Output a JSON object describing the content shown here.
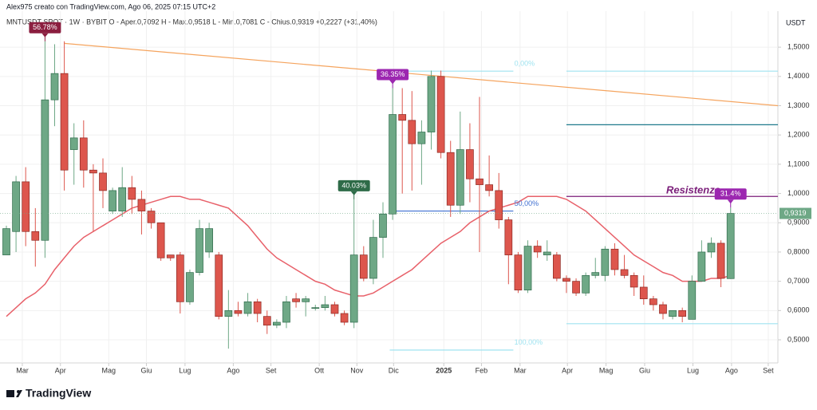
{
  "chart_data": {
    "type": "candlestick",
    "header": "Alex975 creato con TradingView.com, Ago 06, 2025 07:15 UTC+2",
    "legend": "MNTUSDT SPOT · 1W · BYBIT  O - Aper.0,7092  H - Max.0,9518  L - Min.0,7081  C - Chius.0,9319  +0,2227 (+31,40%)",
    "y_unit": "USDT",
    "brand": "TradingView",
    "up_color": "#6ea886",
    "down_color": "#dd564d",
    "open": [
      0.79,
      0.87,
      1.04,
      0.87,
      0.84,
      1.32,
      1.41,
      1.15,
      1.19,
      1.08,
      1.07,
      0.94,
      0.94,
      1.02,
      0.98,
      0.94,
      0.9,
      0.79,
      0.79,
      0.63,
      0.73,
      0.8,
      0.79,
      0.58,
      0.6,
      0.59,
      0.63,
      0.58,
      0.55,
      0.56,
      0.64,
      0.63,
      0.61,
      0.61,
      0.62,
      0.59,
      0.56,
      0.79,
      0.71,
      0.85,
      0.93,
      1.27,
      1.25,
      1.17,
      1.21,
      1.4,
      1.14,
      0.96,
      1.15,
      1.05,
      1.03,
      1.01,
      0.91,
      0.79,
      0.67,
      0.82,
      0.79,
      0.79,
      0.71,
      0.7,
      0.66,
      0.72,
      0.72,
      0.81,
      0.74,
      0.72,
      0.68,
      0.64,
      0.62,
      0.58,
      0.6,
      0.57,
      0.7,
      0.8,
      0.83,
      0.7092
    ],
    "high": [
      0.89,
      1.06,
      1.09,
      0.95,
      1.52,
      1.51,
      1.52,
      1.24,
      1.25,
      1.1,
      1.12,
      1.02,
      1.09,
      1.06,
      1.01,
      0.95,
      0.9,
      0.79,
      0.8,
      0.74,
      0.91,
      0.9,
      0.8,
      0.67,
      0.63,
      0.66,
      0.64,
      0.6,
      0.57,
      0.65,
      0.66,
      0.65,
      0.62,
      0.65,
      0.63,
      0.6,
      0.98,
      0.82,
      0.91,
      0.97,
      1.36,
      1.36,
      1.35,
      1.25,
      1.42,
      1.42,
      1.18,
      1.28,
      1.24,
      1.33,
      1.13,
      1.07,
      0.92,
      0.8,
      0.84,
      0.84,
      0.84,
      0.8,
      0.72,
      0.71,
      0.73,
      0.78,
      0.82,
      0.83,
      0.79,
      0.73,
      0.72,
      0.65,
      0.63,
      0.6,
      0.61,
      0.72,
      0.84,
      0.85,
      0.84,
      0.9518
    ],
    "low": [
      0.79,
      0.8,
      0.82,
      0.75,
      0.78,
      1.23,
      1.01,
      1.03,
      1.02,
      0.87,
      0.95,
      0.93,
      0.92,
      0.93,
      0.86,
      0.88,
      0.77,
      0.77,
      0.59,
      0.62,
      0.72,
      0.78,
      0.57,
      0.47,
      0.58,
      0.58,
      0.56,
      0.52,
      0.54,
      0.54,
      0.61,
      0.58,
      0.6,
      0.6,
      0.58,
      0.55,
      0.54,
      0.7,
      0.69,
      0.78,
      0.91,
      1.0,
      1.01,
      1.03,
      1.15,
      1.12,
      0.92,
      0.93,
      0.97,
      0.8,
      0.99,
      0.88,
      0.69,
      0.66,
      0.66,
      0.78,
      0.77,
      0.7,
      0.66,
      0.65,
      0.65,
      0.71,
      0.7,
      0.72,
      0.71,
      0.65,
      0.62,
      0.6,
      0.57,
      0.57,
      0.56,
      0.57,
      0.7,
      0.78,
      0.68,
      0.7081
    ],
    "close": [
      0.88,
      1.04,
      0.87,
      0.84,
      1.32,
      1.41,
      1.08,
      1.19,
      1.08,
      1.07,
      1.01,
      1.01,
      1.02,
      0.98,
      0.94,
      0.9,
      0.78,
      0.78,
      0.63,
      0.73,
      0.88,
      0.88,
      0.58,
      0.6,
      0.59,
      0.63,
      0.59,
      0.55,
      0.56,
      0.63,
      0.63,
      0.64,
      0.61,
      0.62,
      0.59,
      0.56,
      0.79,
      0.71,
      0.85,
      0.93,
      1.27,
      1.25,
      1.17,
      1.21,
      1.4,
      1.14,
      0.96,
      1.15,
      1.05,
      1.03,
      1.01,
      0.91,
      0.79,
      0.67,
      0.82,
      0.8,
      0.8,
      0.71,
      0.7,
      0.66,
      0.72,
      0.73,
      0.81,
      0.74,
      0.72,
      0.68,
      0.64,
      0.62,
      0.59,
      0.6,
      0.58,
      0.7,
      0.8,
      0.83,
      0.71,
      0.9319
    ],
    "ma": {
      "color": "#e8616a",
      "values": [
        0.58,
        0.61,
        0.64,
        0.66,
        0.69,
        0.74,
        0.78,
        0.82,
        0.85,
        0.87,
        0.89,
        0.91,
        0.93,
        0.95,
        0.96,
        0.97,
        0.98,
        0.99,
        0.99,
        0.98,
        0.98,
        0.97,
        0.96,
        0.95,
        0.92,
        0.89,
        0.85,
        0.81,
        0.78,
        0.76,
        0.74,
        0.72,
        0.7,
        0.69,
        0.67,
        0.66,
        0.65,
        0.65,
        0.66,
        0.68,
        0.7,
        0.72,
        0.74,
        0.77,
        0.8,
        0.83,
        0.85,
        0.87,
        0.9,
        0.92,
        0.94,
        0.95,
        0.96,
        0.97,
        0.99,
        0.99,
        0.99,
        0.99,
        0.98,
        0.96,
        0.94,
        0.91,
        0.88,
        0.85,
        0.82,
        0.79,
        0.77,
        0.75,
        0.73,
        0.72,
        0.7,
        0.7,
        0.7,
        0.71,
        0.71,
        0.72
      ]
    },
    "trendline": {
      "from": 1.513,
      "to": 1.3,
      "color": "#f5a45e"
    },
    "levels": [
      {
        "value": 1.418,
        "label": "0,00%",
        "color": "#9fe3f0"
      },
      {
        "value": 0.94,
        "label": "50,00%",
        "color": "#3f6fd1"
      },
      {
        "value": 0.465,
        "label": "100,00%",
        "color": "#9fe3f0"
      },
      {
        "value": 1.235,
        "color": "#1f7a8c"
      },
      {
        "value": 0.555,
        "color": "#9fe3f0"
      },
      {
        "value": 0.99,
        "label": "Resistenza",
        "color": "#7b1e7a"
      }
    ],
    "callouts": [
      {
        "text": "56.78%",
        "color": "#8b1e3f"
      },
      {
        "text": "36.35%",
        "color": "#9c27b0"
      },
      {
        "text": "40.03%",
        "color": "#2e6b48"
      },
      {
        "text": "31.4%",
        "color": "#9c27b0"
      }
    ],
    "last_price": {
      "value": 0.9319,
      "label": "0,9319"
    },
    "xlim": [
      -0.66,
      79.9
    ],
    "xticks": [
      {
        "value": 1.65,
        "label": "Mar"
      },
      {
        "value": 5.6,
        "label": "Apr"
      },
      {
        "value": 10.6,
        "label": "Mag"
      },
      {
        "value": 14.5,
        "label": "Giu"
      },
      {
        "value": 18.5,
        "label": "Lug"
      },
      {
        "value": 23.5,
        "label": "Ago"
      },
      {
        "value": 27.4,
        "label": "Set"
      },
      {
        "value": 32.4,
        "label": "Ott"
      },
      {
        "value": 36.3,
        "label": "Nov"
      },
      {
        "value": 40.1,
        "label": "Dic"
      },
      {
        "value": 45.3,
        "label": "2025"
      },
      {
        "value": 49.2,
        "label": "Feb"
      },
      {
        "value": 53.2,
        "label": "Mar"
      },
      {
        "value": 58.1,
        "label": "Apr"
      },
      {
        "value": 62.1,
        "label": "Mag"
      },
      {
        "value": 66.1,
        "label": "Giu"
      },
      {
        "value": 71.1,
        "label": "Lug"
      },
      {
        "value": 75.1,
        "label": "Ago"
      },
      {
        "value": 78.9,
        "label": "Set"
      }
    ],
    "ylim": [
      0.421,
      1.623
    ],
    "yticks": [
      {
        "value": 0.5,
        "label": "0,5000"
      },
      {
        "value": 0.6,
        "label": "0,6000"
      },
      {
        "value": 0.7,
        "label": "0,7000"
      },
      {
        "value": 0.8,
        "label": "0,8000"
      },
      {
        "value": 0.9,
        "label": "0,9000"
      },
      {
        "value": 1.0,
        "label": "1,0000"
      },
      {
        "value": 1.1,
        "label": "1,1000"
      },
      {
        "value": 1.2,
        "label": "1,2000"
      },
      {
        "value": 1.3,
        "label": "1,3000"
      },
      {
        "value": 1.4,
        "label": "1,4000"
      },
      {
        "value": 1.5,
        "label": "1,5000"
      }
    ],
    "grid": true
  }
}
